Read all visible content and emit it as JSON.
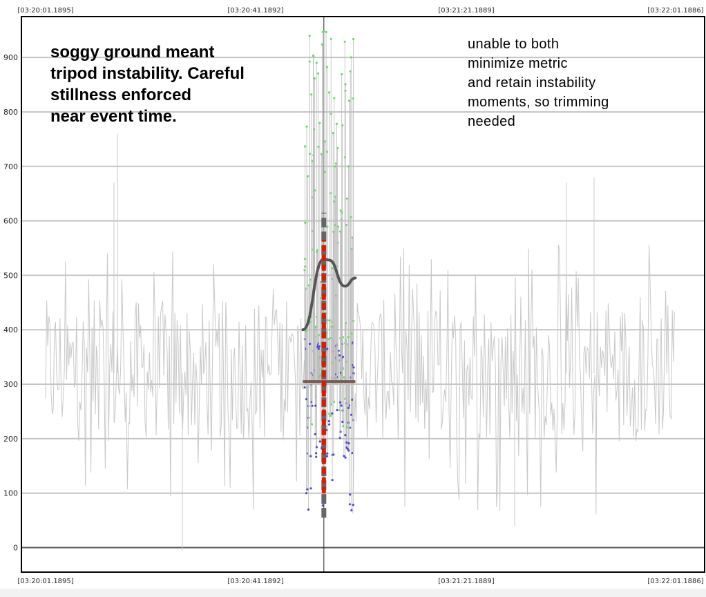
{
  "chart_data": {
    "type": "line",
    "title": "",
    "xlabel": "",
    "ylabel": "",
    "x_tick_labels": [
      "[03:20:01.1895]",
      "[03:20:41.1892]",
      "[03:21:21.1889]",
      "[03:22:01.1886]"
    ],
    "y_ticks": [
      0,
      100,
      200,
      300,
      400,
      500,
      600,
      700,
      800,
      900
    ],
    "ylim": [
      -45,
      975
    ],
    "grid": "horizontal",
    "event_time": "03:20:54",
    "annotations": [
      {
        "name": "note-left",
        "text": "soggy ground meant\ntripod instability. Careful\nstillness enforced\nnear event time."
      },
      {
        "name": "note-right",
        "text": "unable to both\nminimize metric\nand retain instability\nmoments, so trimming\nneeded"
      }
    ],
    "series": [
      {
        "color": "#c8c8c8",
        "style": "dense spiky trace",
        "time_range": [
          "03:20:01",
          "03:22:01"
        ],
        "typical_range": [
          150,
          500
        ],
        "spike_max": 760,
        "spike_min": -5
      },
      {
        "color": "#66dd66",
        "style": "markers",
        "time_range": [
          "03:20:50",
          "03:21:00"
        ],
        "approx_range": [
          220,
          950
        ]
      },
      {
        "color": "#4a4ad0",
        "style": "markers",
        "time_range": [
          "03:20:50",
          "03:21:00"
        ],
        "approx_range": [
          65,
          600
        ]
      },
      {
        "color": "#555555",
        "style": "smooth curve",
        "x": [
          "03:20:50",
          "03:20:54",
          "03:20:55",
          "03:20:58",
          "03:21:00"
        ],
        "y": [
          400,
          530,
          528,
          480,
          495
        ]
      },
      {
        "color": "#7a5a52",
        "style": "horizontal line",
        "x": [
          "03:20:50",
          "03:21:00"
        ],
        "y": [
          305,
          305
        ]
      },
      {
        "color": "#666666",
        "style": "thick dashed vertical",
        "x": [
          "03:20:54",
          "03:20:54"
        ],
        "y": [
          55,
          615
        ]
      },
      {
        "color": "#dd1a00",
        "style": "dashed vertical",
        "x": [
          "03:20:54",
          "03:20:54"
        ],
        "y": [
          100,
          565
        ]
      }
    ]
  },
  "colors": {
    "grid": "#c4c4c4",
    "zero_line": "#555555",
    "background_trace": "#c8c8c8",
    "green_points": "#66dd66",
    "blue_points": "#4a4ad0",
    "trend_curve": "#555555",
    "baseline": "#7a5a52",
    "event_dash_outer": "#666666",
    "event_dash_inner": "#dd1a00"
  }
}
